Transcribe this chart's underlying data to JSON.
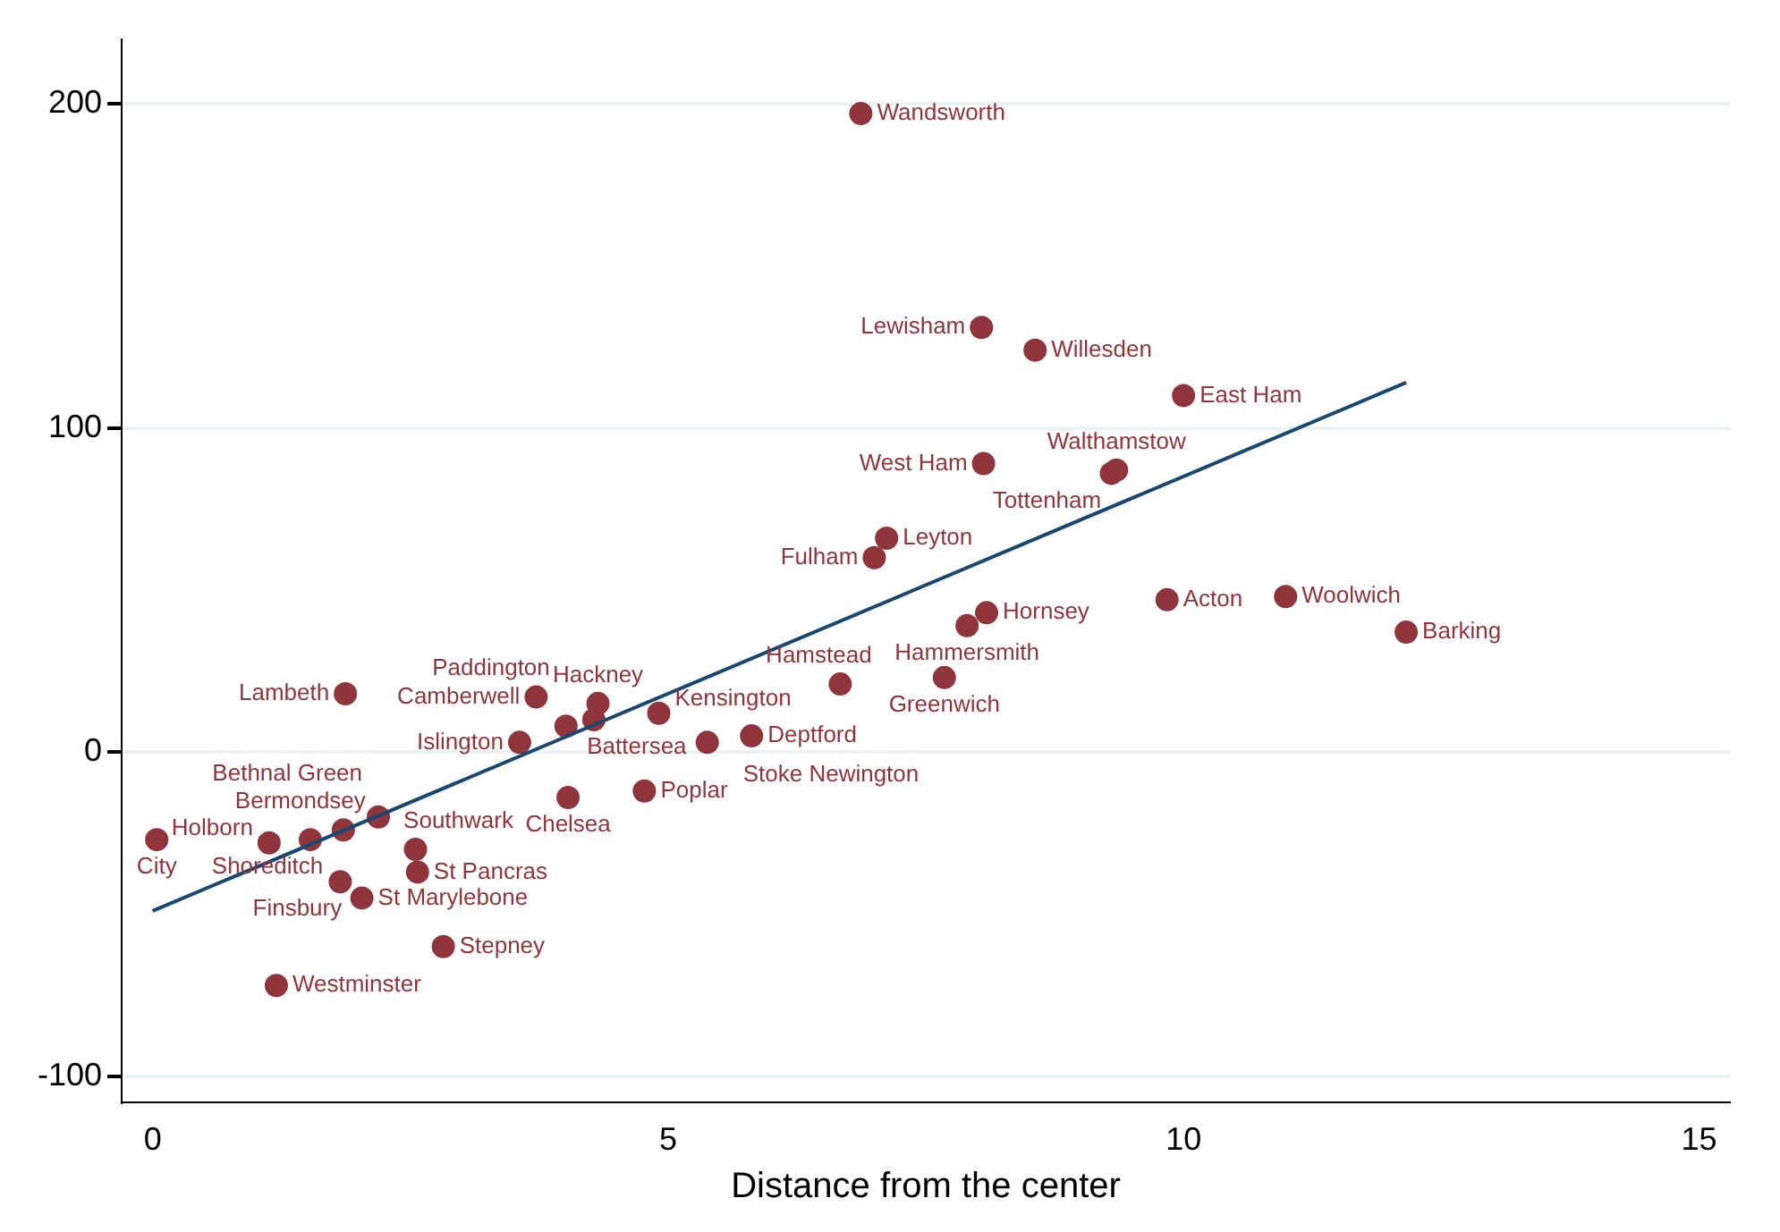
{
  "chart_data": {
    "type": "scatter",
    "xlabel": "Distance from the center",
    "xlim": [
      -0.3,
      15.3
    ],
    "xticks": [
      0,
      5,
      10,
      15
    ],
    "ylim": [
      -108,
      220
    ],
    "yticks": [
      -100,
      0,
      100,
      200
    ],
    "grid": "y",
    "legend": false,
    "marker": "circle",
    "series": [
      {
        "type": "scatter",
        "color": "#90353b",
        "x": [
          6.87,
          8.04,
          8.56,
          10.0,
          8.06,
          9.35,
          9.3,
          7.12,
          7.0,
          8.09,
          7.9,
          9.84,
          10.99,
          12.16,
          6.67,
          7.68,
          1.87,
          3.72,
          4.32,
          4.28,
          4.01,
          4.91,
          5.81,
          5.38,
          3.56,
          4.03,
          4.77,
          2.19,
          1.85,
          1.53,
          1.13,
          0.04,
          2.55,
          2.57,
          1.82,
          2.03,
          2.82,
          1.2
        ],
        "values": [
          197,
          131,
          124,
          110,
          89,
          87,
          86,
          66,
          60,
          43,
          39,
          47,
          48,
          37,
          21,
          23,
          18,
          17,
          15,
          10,
          8,
          12,
          5,
          3,
          3,
          -14,
          -12,
          -20,
          -24,
          -27,
          -28,
          -27,
          -30,
          -37,
          -40,
          -45,
          -60,
          -72
        ]
      },
      {
        "type": "line",
        "color": "#1a476f",
        "x": [
          0,
          12.16
        ],
        "values": [
          -49,
          114
        ],
        "marker": "none"
      }
    ],
    "annotations": [
      {
        "text": "Wandsworth",
        "x": 6.87,
        "y": 197
      },
      {
        "text": "Lewisham",
        "x": 8.04,
        "y": 131
      },
      {
        "text": "Willesden",
        "x": 8.56,
        "y": 124
      },
      {
        "text": "East Ham",
        "x": 10.0,
        "y": 110
      },
      {
        "text": "West Ham",
        "x": 8.06,
        "y": 89
      },
      {
        "text": "Walthamstow",
        "x": 9.35,
        "y": 87
      },
      {
        "text": "Tottenham",
        "x": 9.3,
        "y": 86
      },
      {
        "text": "Leyton",
        "x": 7.12,
        "y": 66
      },
      {
        "text": "Fulham",
        "x": 7.0,
        "y": 60
      },
      {
        "text": "Hornsey",
        "x": 8.09,
        "y": 43
      },
      {
        "text": "Hammersmith",
        "x": 7.9,
        "y": 39
      },
      {
        "text": "Acton",
        "x": 9.84,
        "y": 47
      },
      {
        "text": "Woolwich",
        "x": 10.99,
        "y": 48
      },
      {
        "text": "Barking",
        "x": 12.16,
        "y": 37
      },
      {
        "text": "Hamstead",
        "x": 6.67,
        "y": 21
      },
      {
        "text": "Greenwich",
        "x": 7.68,
        "y": 23
      },
      {
        "text": "Lambeth",
        "x": 1.87,
        "y": 18
      },
      {
        "text": "Camberwell",
        "x": 3.72,
        "y": 17
      },
      {
        "text": "Hackney",
        "x": 4.32,
        "y": 15
      },
      {
        "text": "Battersea",
        "x": 4.28,
        "y": 10
      },
      {
        "text": "Paddington",
        "x": 4.01,
        "y": 8
      },
      {
        "text": "Kensington",
        "x": 4.91,
        "y": 12
      },
      {
        "text": "Deptford",
        "x": 5.81,
        "y": 5
      },
      {
        "text": "Stoke Newington",
        "x": 5.38,
        "y": 3
      },
      {
        "text": "Islington",
        "x": 3.56,
        "y": 3
      },
      {
        "text": "Chelsea",
        "x": 4.03,
        "y": -14
      },
      {
        "text": "Poplar",
        "x": 4.77,
        "y": -12
      },
      {
        "text": "Bethnal Green",
        "x": 2.19,
        "y": -20
      },
      {
        "text": "Bermondsey",
        "x": 1.85,
        "y": -24
      },
      {
        "text": "Shoreditch",
        "x": 1.53,
        "y": -27
      },
      {
        "text": "Holborn",
        "x": 1.13,
        "y": -28
      },
      {
        "text": "City",
        "x": 0.04,
        "y": -27
      },
      {
        "text": "Southwark",
        "x": 2.55,
        "y": -30
      },
      {
        "text": "St Pancras",
        "x": 2.57,
        "y": -37
      },
      {
        "text": "Finsbury",
        "x": 1.82,
        "y": -40
      },
      {
        "text": "St Marylebone",
        "x": 2.03,
        "y": -45
      },
      {
        "text": "Stepney",
        "x": 2.82,
        "y": -60
      },
      {
        "text": "Westminster",
        "x": 1.2,
        "y": -72
      }
    ]
  }
}
